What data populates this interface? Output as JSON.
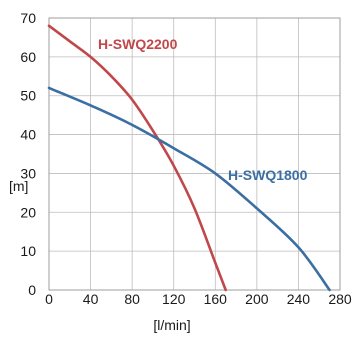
{
  "chart_data": {
    "type": "line",
    "xlabel": "[l/min]",
    "ylabel": "[m]",
    "xlim": [
      0,
      280
    ],
    "ylim": [
      0,
      70
    ],
    "xticks": [
      0,
      40,
      80,
      120,
      160,
      200,
      240,
      280
    ],
    "yticks": [
      0,
      10,
      20,
      30,
      40,
      50,
      60,
      70
    ],
    "grid": true,
    "series": [
      {
        "name": "H-SWQ2200",
        "color": "#c0474a",
        "x": [
          0,
          20,
          40,
          60,
          80,
          100,
          120,
          140,
          160,
          170
        ],
        "y": [
          68,
          64,
          60,
          55,
          49,
          41,
          32,
          21,
          7,
          0
        ]
      },
      {
        "name": "H-SWQ1800",
        "color": "#3b6fa3",
        "x": [
          0,
          40,
          80,
          120,
          160,
          200,
          240,
          270
        ],
        "y": [
          52,
          47.5,
          42.5,
          36.5,
          30,
          21,
          11,
          0
        ]
      }
    ]
  }
}
